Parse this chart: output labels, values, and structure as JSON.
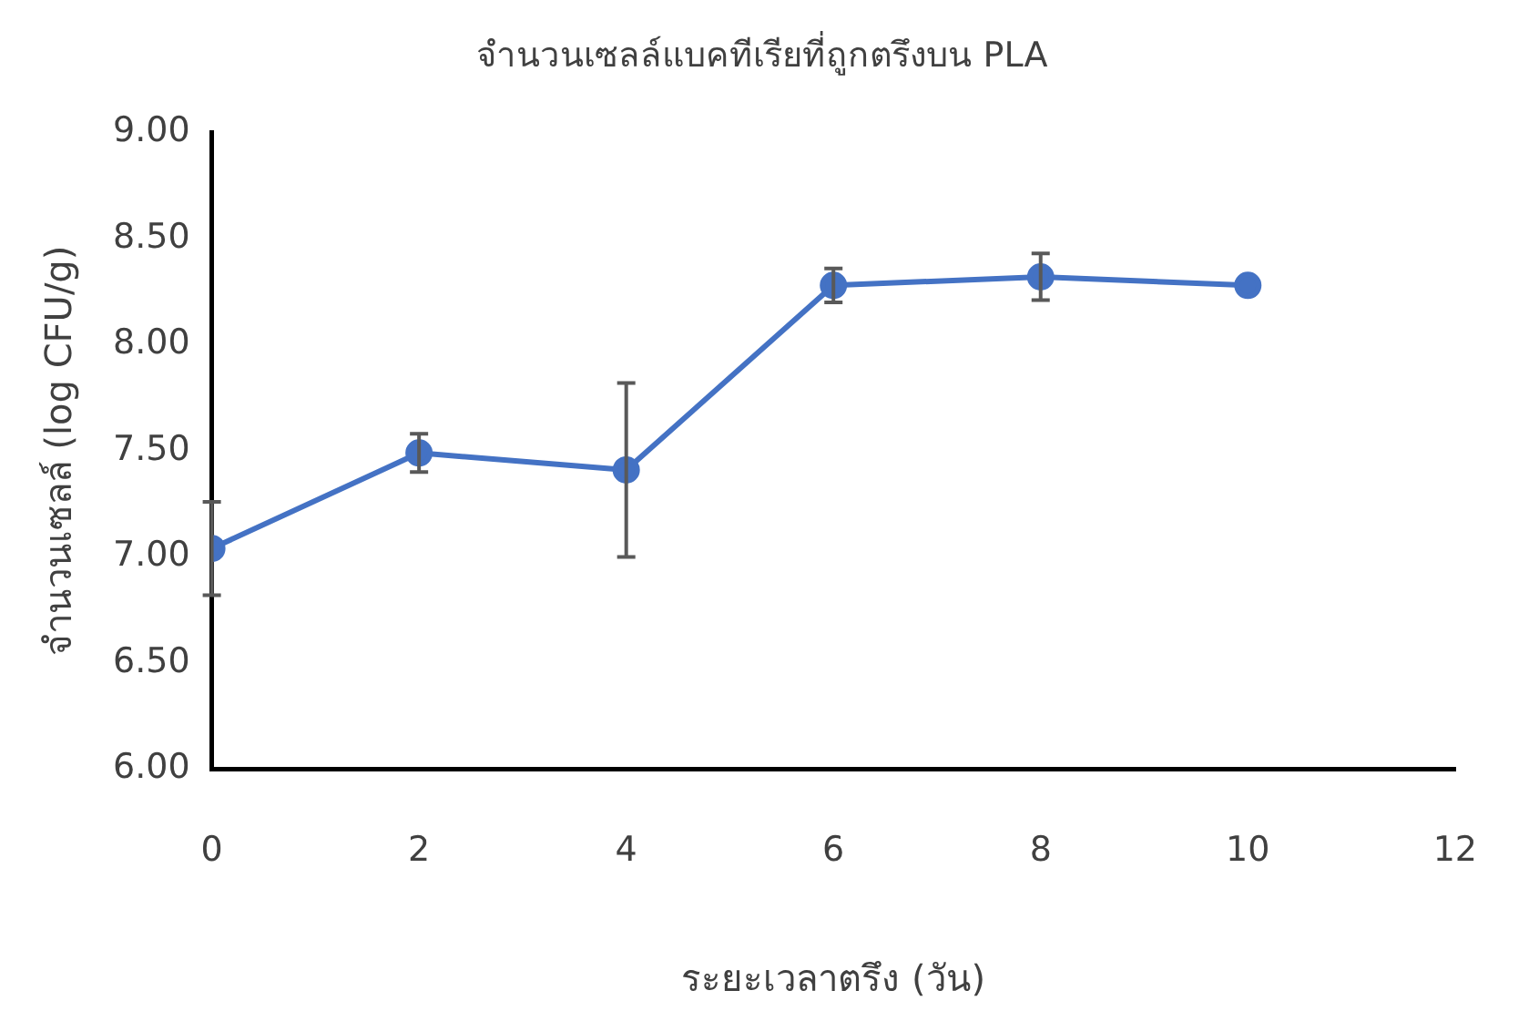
{
  "chart_data": {
    "type": "line",
    "title": "จำนวนเซลล์แบคทีเรียที่ถูกตรึงบน PLA",
    "xlabel": "ระยะเวลาตรึง (วัน)",
    "ylabel": "จำนวนเซลล์ (log CFU/g)",
    "x": [
      0,
      2,
      4,
      6,
      8,
      10
    ],
    "series": [
      {
        "color": "#4472c4",
        "values": [
          7.04,
          7.49,
          7.41,
          8.28,
          8.32,
          8.28
        ],
        "errors": [
          0.22,
          0.09,
          0.41,
          0.08,
          0.11,
          null
        ]
      }
    ],
    "xlim": [
      0,
      12
    ],
    "xticks": [
      0,
      2,
      4,
      6,
      8,
      10,
      12
    ],
    "ylim": [
      6,
      9
    ],
    "yticks": [
      {
        "value": 6,
        "label": "6.00"
      },
      {
        "value": 6.5,
        "label": "6.50"
      },
      {
        "value": 7,
        "label": "7.00"
      },
      {
        "value": 7.5,
        "label": "7.50"
      },
      {
        "value": 8,
        "label": "8.00"
      },
      {
        "value": 8.5,
        "label": "8.50"
      },
      {
        "value": 9,
        "label": "9.00"
      }
    ],
    "grid": false,
    "legend": false,
    "marker": "circle",
    "line_style": "solid"
  }
}
